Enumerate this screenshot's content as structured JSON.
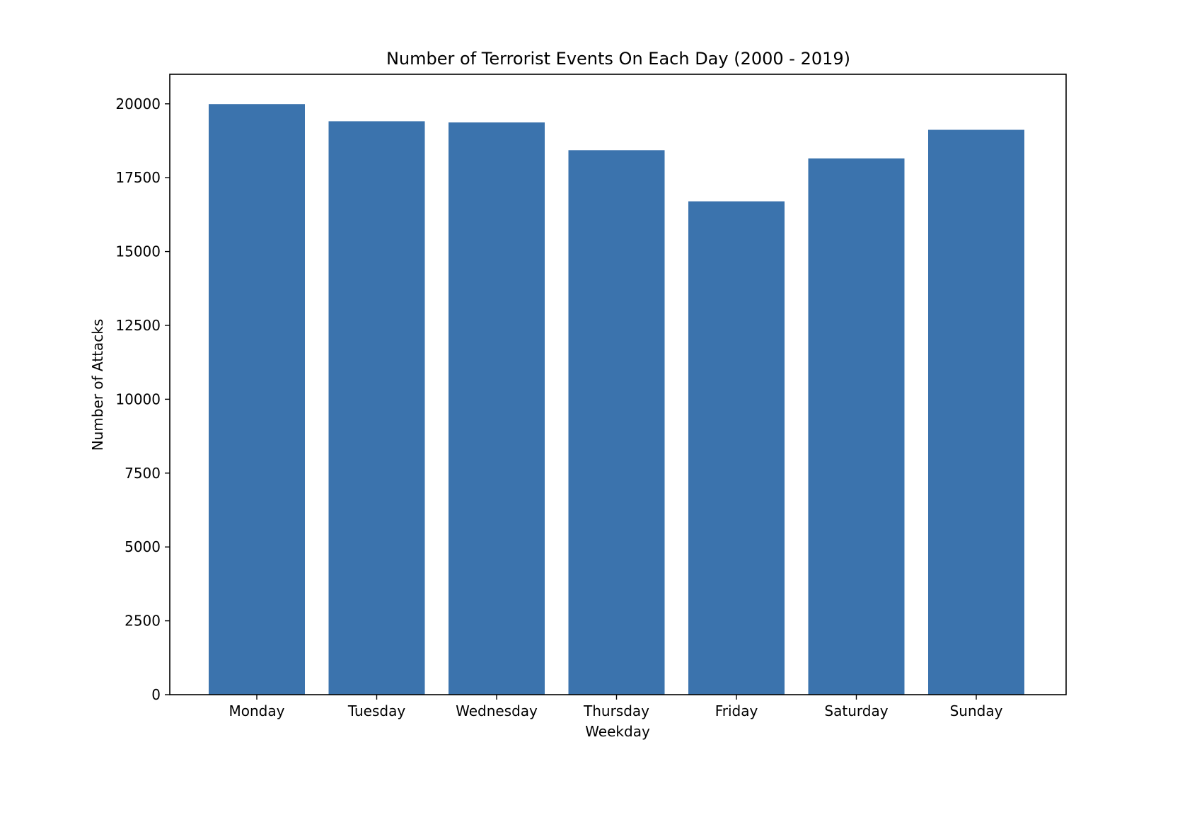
{
  "chart_data": {
    "type": "bar",
    "title": "Number of Terrorist Events On Each Day (2000 - 2019)",
    "xlabel": "Weekday",
    "ylabel": "Number of Attacks",
    "categories": [
      "Monday",
      "Tuesday",
      "Wednesday",
      "Thursday",
      "Friday",
      "Saturday",
      "Sunday"
    ],
    "values": [
      19990,
      19410,
      19370,
      18430,
      16700,
      18150,
      19120
    ],
    "ylim": [
      0,
      21000
    ],
    "yticks": [
      0,
      2500,
      5000,
      7500,
      10000,
      12500,
      15000,
      17500,
      20000
    ],
    "bar_color": "#3b73ad",
    "grid": false,
    "legend": "none"
  }
}
